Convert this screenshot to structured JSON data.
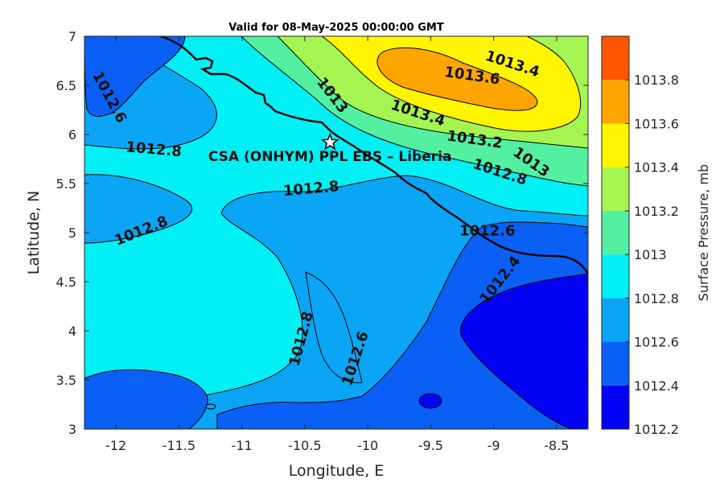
{
  "chart_data": {
    "type": "contour-map",
    "title": "Valid for 08-May-2025 00:00:00 GMT",
    "xlabel": "Longitude, E",
    "ylabel": "Latitude, N",
    "xlim": [
      -12.25,
      -8.25
    ],
    "ylim": [
      3,
      7
    ],
    "xticks": [
      -12,
      -11.5,
      -11,
      -10.5,
      -10,
      -9.5,
      -9,
      -8.5
    ],
    "yticks": [
      3,
      3.5,
      4,
      4.5,
      5,
      5.5,
      6,
      6.5,
      7
    ],
    "colorbar": {
      "label": "Surface Pressure, mb",
      "levels": [
        1012.2,
        1012.4,
        1012.6,
        1012.8,
        1013,
        1013.2,
        1013.4,
        1013.6,
        1013.8
      ],
      "colors": [
        "#0000f5",
        "#0a5ff5",
        "#0aa5f5",
        "#00f0f5",
        "#52f0a0",
        "#a5f552",
        "#fff500",
        "#ffa500",
        "#ff5500"
      ]
    },
    "station": {
      "label": "CSA (ONHYM) PPL EBS  – Liberia",
      "lon": -10.3,
      "lat": 5.92
    },
    "contour_labels": [
      {
        "text": "1012.6",
        "lon": -12.05,
        "lat": 6.38,
        "angle": 62
      },
      {
        "text": "1013",
        "lon": -10.28,
        "lat": 6.4,
        "angle": 52
      },
      {
        "text": "1013.6",
        "lon": -9.17,
        "lat": 6.6,
        "angle": 8
      },
      {
        "text": "1013.4",
        "lon": -8.85,
        "lat": 6.72,
        "angle": 18
      },
      {
        "text": "1013.4",
        "lon": -9.6,
        "lat": 6.22,
        "angle": 18
      },
      {
        "text": "1013.2",
        "lon": -9.15,
        "lat": 5.95,
        "angle": 8
      },
      {
        "text": "1013",
        "lon": -8.7,
        "lat": 5.72,
        "angle": 35
      },
      {
        "text": "1012.8",
        "lon": -8.95,
        "lat": 5.62,
        "angle": 18
      },
      {
        "text": "1012.8",
        "lon": -11.7,
        "lat": 5.85,
        "angle": 5
      },
      {
        "text": "1012.8",
        "lon": -10.45,
        "lat": 5.45,
        "angle": -5
      },
      {
        "text": "1012.8",
        "lon": -11.8,
        "lat": 5.02,
        "angle": -22
      },
      {
        "text": "1012.6",
        "lon": -9.05,
        "lat": 5.02,
        "angle": 0
      },
      {
        "text": "1012.4",
        "lon": -8.95,
        "lat": 4.52,
        "angle": -52
      },
      {
        "text": "1012.8",
        "lon": -10.53,
        "lat": 3.92,
        "angle": -75
      },
      {
        "text": "1012.6",
        "lon": -10.1,
        "lat": 3.72,
        "angle": -72
      }
    ]
  }
}
